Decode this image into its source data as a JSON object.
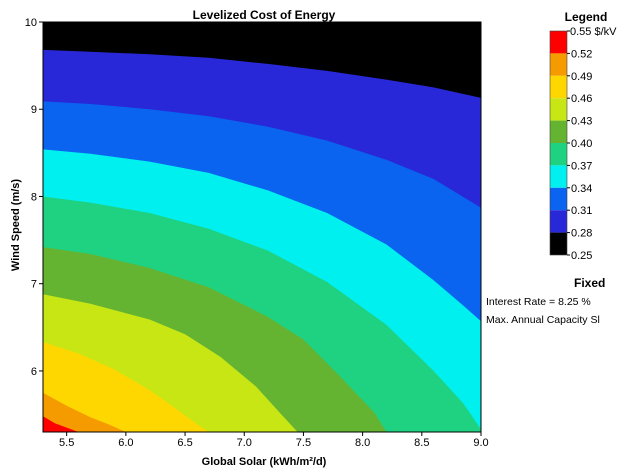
{
  "chart_data": {
    "type": "heatmap",
    "title": "Levelized Cost of Energy",
    "xlabel": "Global Solar (kWh/m²/d)",
    "ylabel": "Wind Speed (m/s)",
    "xlim": [
      5.3,
      9.0
    ],
    "ylim": [
      5.3,
      10.0
    ],
    "x_ticks": [
      "5.5",
      "6.0",
      "6.5",
      "7.0",
      "7.5",
      "8.0",
      "8.5",
      "9.0"
    ],
    "y_ticks": [
      "6",
      "7",
      "8",
      "9",
      "10"
    ],
    "grid": false,
    "legend_position": "right",
    "bands": [
      {
        "min": 0.25,
        "max": 0.28,
        "color": "#000000"
      },
      {
        "min": 0.28,
        "max": 0.31,
        "color": "#2828d8"
      },
      {
        "min": 0.31,
        "max": 0.34,
        "color": "#0a64f0"
      },
      {
        "min": 0.34,
        "max": 0.37,
        "color": "#00f0f0"
      },
      {
        "min": 0.37,
        "max": 0.4,
        "color": "#1ed282"
      },
      {
        "min": 0.4,
        "max": 0.43,
        "color": "#64b432"
      },
      {
        "min": 0.43,
        "max": 0.46,
        "color": "#c8e614"
      },
      {
        "min": 0.46,
        "max": 0.49,
        "color": "#ffd700"
      },
      {
        "min": 0.49,
        "max": 0.52,
        "color": "#f59b00"
      },
      {
        "min": 0.52,
        "max": 0.55,
        "color": "#ff0000"
      }
    ],
    "boundaries": [
      {
        "x": [
          5.3,
          5.7,
          6.2,
          6.7,
          7.2,
          7.7,
          8.2,
          8.6,
          9.0
        ],
        "y": [
          9.68,
          9.66,
          9.63,
          9.59,
          9.52,
          9.44,
          9.34,
          9.25,
          9.13
        ]
      },
      {
        "x": [
          5.3,
          5.7,
          6.2,
          6.7,
          7.2,
          7.7,
          8.2,
          8.6,
          9.0
        ],
        "y": [
          9.09,
          9.06,
          9.0,
          8.92,
          8.8,
          8.64,
          8.42,
          8.2,
          7.87
        ]
      },
      {
        "x": [
          5.3,
          5.7,
          6.2,
          6.7,
          7.2,
          7.7,
          8.2,
          8.6,
          8.85,
          9.0
        ],
        "y": [
          8.54,
          8.49,
          8.4,
          8.27,
          8.07,
          7.81,
          7.45,
          7.04,
          6.75,
          6.57
        ]
      },
      {
        "x": [
          5.3,
          5.7,
          6.2,
          6.7,
          7.2,
          7.7,
          8.2,
          8.6,
          8.85,
          9.0
        ],
        "y": [
          8.0,
          7.93,
          7.81,
          7.63,
          7.38,
          7.02,
          6.53,
          6.0,
          5.63,
          5.33
        ]
      },
      {
        "x": [
          5.3,
          5.7,
          6.2,
          6.7,
          7.2,
          7.5,
          7.8,
          8.1,
          8.2
        ],
        "y": [
          7.42,
          7.34,
          7.18,
          6.96,
          6.62,
          6.36,
          5.95,
          5.52,
          5.3
        ]
      },
      {
        "x": [
          5.3,
          5.7,
          6.2,
          6.5,
          6.8,
          7.1,
          7.3,
          7.45
        ],
        "y": [
          6.88,
          6.77,
          6.59,
          6.42,
          6.16,
          5.82,
          5.52,
          5.3
        ]
      },
      {
        "x": [
          5.3,
          5.6,
          5.9,
          6.2,
          6.4,
          6.6,
          6.7
        ],
        "y": [
          6.33,
          6.2,
          6.02,
          5.78,
          5.59,
          5.39,
          5.3
        ]
      },
      {
        "x": [
          5.3,
          5.5,
          5.7,
          5.85,
          6.0
        ],
        "y": [
          5.75,
          5.6,
          5.47,
          5.39,
          5.3
        ]
      },
      {
        "x": [
          5.3,
          5.4,
          5.5,
          5.6
        ],
        "y": [
          5.48,
          5.4,
          5.35,
          5.3
        ]
      }
    ],
    "legend": {
      "title": "Legend",
      "unit_label": "0.55 $/kV",
      "labels": [
        "0.52",
        "0.49",
        "0.46",
        "0.43",
        "0.40",
        "0.37",
        "0.34",
        "0.31",
        "0.28",
        "0.25"
      ]
    }
  },
  "fixed_panel": {
    "title": "Fixed",
    "lines": [
      "Interest Rate = 8.25 %",
      "Max. Annual Capacity Sl"
    ]
  }
}
